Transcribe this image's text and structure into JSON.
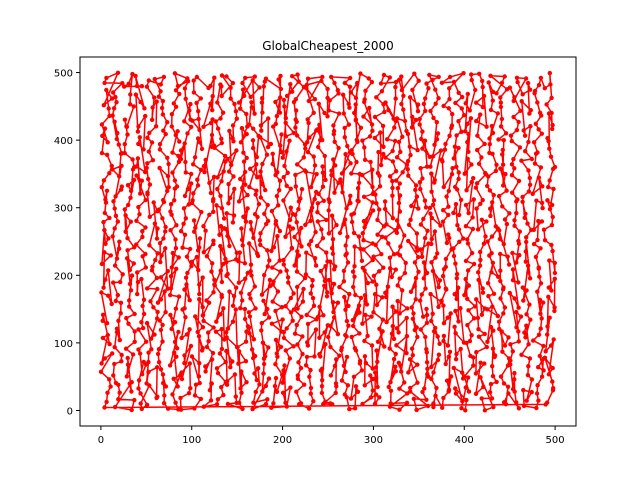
{
  "chart_data": {
    "type": "line",
    "title": "GlobalCheapest_2000",
    "xlabel": "",
    "ylabel": "",
    "xlim": [
      -23,
      523
    ],
    "ylim": [
      -23,
      523
    ],
    "x_ticks": [
      0,
      100,
      200,
      300,
      400,
      500
    ],
    "y_ticks": [
      0,
      100,
      200,
      300,
      400,
      500
    ],
    "grid": false,
    "legend": "none",
    "colors": {
      "route": "#ff0000",
      "axes": "#000000",
      "background": "#ffffff"
    },
    "series": [
      {
        "marker": "circle",
        "point_count": 2000,
        "sampled_points_x": [
          0,
          12,
          28,
          45,
          38,
          20,
          8,
          15,
          35,
          60,
          55,
          42,
          22,
          5,
          2,
          18,
          40,
          65,
          80,
          95,
          110,
          125,
          140,
          160,
          175,
          190,
          210,
          230,
          245,
          260,
          280,
          300,
          320,
          340,
          360,
          380,
          400,
          420,
          440,
          460,
          480,
          495,
          498,
          488,
          470,
          455,
          440,
          450,
          470,
          490,
          500,
          492,
          478,
          460,
          445,
          430,
          410,
          395,
          380,
          360,
          340,
          320,
          305,
          290,
          270,
          250,
          235,
          220,
          200,
          185,
          165,
          150,
          135,
          120,
          100,
          85,
          70,
          50,
          30,
          10
        ],
        "sampled_points_y": [
          180,
          160,
          140,
          120,
          95,
          80,
          60,
          40,
          20,
          5,
          25,
          50,
          75,
          100,
          130,
          155,
          175,
          195,
          210,
          230,
          250,
          265,
          280,
          300,
          320,
          335,
          350,
          365,
          380,
          395,
          410,
          425,
          440,
          455,
          470,
          485,
          495,
          480,
          460,
          440,
          420,
          400,
          380,
          360,
          340,
          320,
          300,
          280,
          260,
          240,
          220,
          200,
          180,
          160,
          140,
          120,
          100,
          80,
          60,
          40,
          20,
          10,
          30,
          55,
          75,
          95,
          115,
          135,
          150,
          170,
          190,
          205,
          225,
          245,
          265,
          285,
          305,
          325,
          345,
          365
        ]
      }
    ]
  }
}
